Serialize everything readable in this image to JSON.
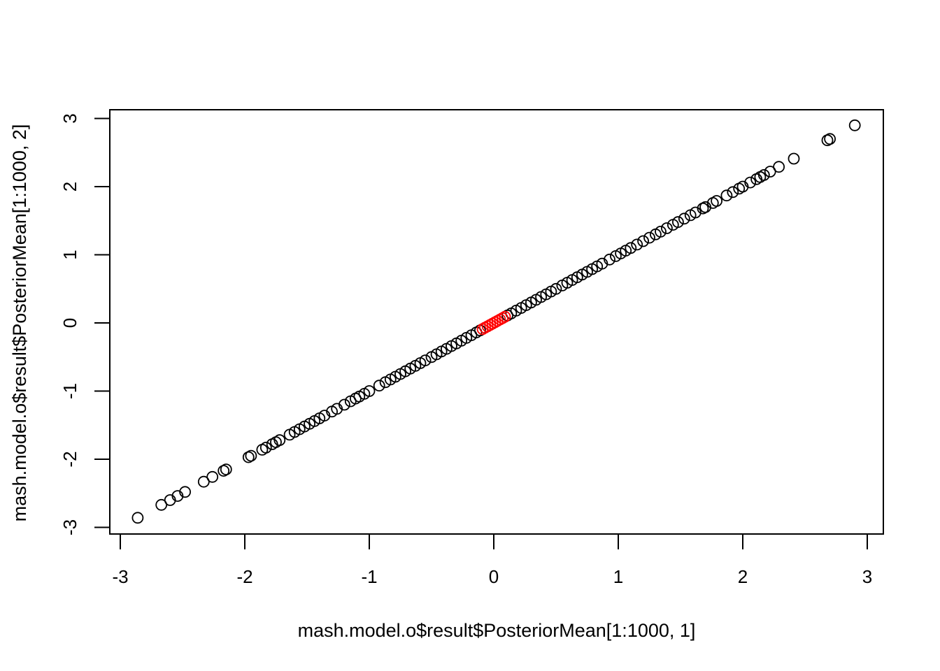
{
  "chart_data": {
    "type": "scatter",
    "title": "",
    "xlabel": "mash.model.o$result$PosteriorMean[1:1000, 1]",
    "ylabel": "mash.model.o$result$PosteriorMean[1:1000, 2]",
    "xlim": [
      -3.1,
      3.1
    ],
    "ylim": [
      -3.1,
      3.1
    ],
    "xticks": [
      -3,
      -2,
      -1,
      0,
      1,
      2,
      3
    ],
    "yticks": [
      -3,
      -2,
      -1,
      0,
      1,
      2,
      3
    ],
    "xtick_labels": [
      "-3",
      "-2",
      "-1",
      "0",
      "1",
      "2",
      "3"
    ],
    "ytick_labels": [
      "-3",
      "-2",
      "-1",
      "0",
      "1",
      "2",
      "3"
    ],
    "grid": false,
    "legend": "none",
    "marker": "open-circle",
    "series": [
      {
        "color": "#000000",
        "points": [
          [
            -2.86,
            -2.86
          ],
          [
            -2.67,
            -2.67
          ],
          [
            -2.6,
            -2.6
          ],
          [
            -2.54,
            -2.54
          ],
          [
            -2.48,
            -2.48
          ],
          [
            -2.33,
            -2.33
          ],
          [
            -2.26,
            -2.26
          ],
          [
            -2.17,
            -2.17
          ],
          [
            -2.15,
            -2.15
          ],
          [
            -1.97,
            -1.97
          ],
          [
            -1.95,
            -1.95
          ],
          [
            -1.86,
            -1.86
          ],
          [
            -1.83,
            -1.83
          ],
          [
            -1.78,
            -1.78
          ],
          [
            -1.75,
            -1.75
          ],
          [
            -1.72,
            -1.72
          ],
          [
            -1.64,
            -1.64
          ],
          [
            -1.6,
            -1.6
          ],
          [
            -1.56,
            -1.56
          ],
          [
            -1.52,
            -1.52
          ],
          [
            -1.48,
            -1.48
          ],
          [
            -1.44,
            -1.44
          ],
          [
            -1.4,
            -1.4
          ],
          [
            -1.36,
            -1.36
          ],
          [
            -1.3,
            -1.3
          ],
          [
            -1.26,
            -1.26
          ],
          [
            -1.2,
            -1.2
          ],
          [
            -1.15,
            -1.15
          ],
          [
            -1.11,
            -1.11
          ],
          [
            -1.08,
            -1.08
          ],
          [
            -1.04,
            -1.04
          ],
          [
            -1.0,
            -1.0
          ],
          [
            -0.92,
            -0.92
          ],
          [
            -0.87,
            -0.87
          ],
          [
            -0.83,
            -0.83
          ],
          [
            -0.79,
            -0.79
          ],
          [
            -0.75,
            -0.75
          ],
          [
            -0.71,
            -0.71
          ],
          [
            -0.67,
            -0.67
          ],
          [
            -0.63,
            -0.63
          ],
          [
            -0.59,
            -0.59
          ],
          [
            -0.55,
            -0.55
          ],
          [
            -0.5,
            -0.5
          ],
          [
            -0.46,
            -0.46
          ],
          [
            -0.42,
            -0.42
          ],
          [
            -0.38,
            -0.38
          ],
          [
            -0.34,
            -0.34
          ],
          [
            -0.3,
            -0.3
          ],
          [
            -0.26,
            -0.26
          ],
          [
            -0.22,
            -0.22
          ],
          [
            -0.18,
            -0.18
          ],
          [
            -0.14,
            -0.14
          ],
          [
            -0.11,
            -0.11
          ],
          [
            0.11,
            0.11
          ],
          [
            0.14,
            0.14
          ],
          [
            0.18,
            0.18
          ],
          [
            0.22,
            0.22
          ],
          [
            0.26,
            0.26
          ],
          [
            0.3,
            0.3
          ],
          [
            0.34,
            0.34
          ],
          [
            0.38,
            0.38
          ],
          [
            0.42,
            0.42
          ],
          [
            0.46,
            0.46
          ],
          [
            0.5,
            0.5
          ],
          [
            0.55,
            0.55
          ],
          [
            0.59,
            0.59
          ],
          [
            0.63,
            0.63
          ],
          [
            0.67,
            0.67
          ],
          [
            0.71,
            0.71
          ],
          [
            0.75,
            0.75
          ],
          [
            0.79,
            0.79
          ],
          [
            0.83,
            0.83
          ],
          [
            0.87,
            0.87
          ],
          [
            0.93,
            0.93
          ],
          [
            0.98,
            0.98
          ],
          [
            1.02,
            1.02
          ],
          [
            1.06,
            1.06
          ],
          [
            1.1,
            1.1
          ],
          [
            1.15,
            1.15
          ],
          [
            1.2,
            1.2
          ],
          [
            1.25,
            1.25
          ],
          [
            1.3,
            1.3
          ],
          [
            1.34,
            1.34
          ],
          [
            1.39,
            1.39
          ],
          [
            1.44,
            1.44
          ],
          [
            1.48,
            1.48
          ],
          [
            1.53,
            1.53
          ],
          [
            1.58,
            1.58
          ],
          [
            1.62,
            1.62
          ],
          [
            1.68,
            1.68
          ],
          [
            1.7,
            1.7
          ],
          [
            1.76,
            1.76
          ],
          [
            1.79,
            1.79
          ],
          [
            1.87,
            1.87
          ],
          [
            1.92,
            1.92
          ],
          [
            1.97,
            1.97
          ],
          [
            2.0,
            2.0
          ],
          [
            2.06,
            2.06
          ],
          [
            2.11,
            2.11
          ],
          [
            2.14,
            2.14
          ],
          [
            2.17,
            2.17
          ],
          [
            2.22,
            2.22
          ],
          [
            2.29,
            2.29
          ],
          [
            2.41,
            2.41
          ],
          [
            2.68,
            2.68
          ],
          [
            2.7,
            2.7
          ],
          [
            2.9,
            2.9
          ]
        ]
      },
      {
        "color": "#ff0000",
        "points": [
          [
            -0.09,
            -0.09
          ],
          [
            -0.07,
            -0.07
          ],
          [
            -0.05,
            -0.05
          ],
          [
            -0.03,
            -0.03
          ],
          [
            -0.01,
            -0.01
          ],
          [
            0.01,
            0.01
          ],
          [
            0.03,
            0.03
          ],
          [
            0.05,
            0.05
          ],
          [
            0.07,
            0.07
          ],
          [
            0.09,
            0.09
          ]
        ]
      }
    ]
  }
}
